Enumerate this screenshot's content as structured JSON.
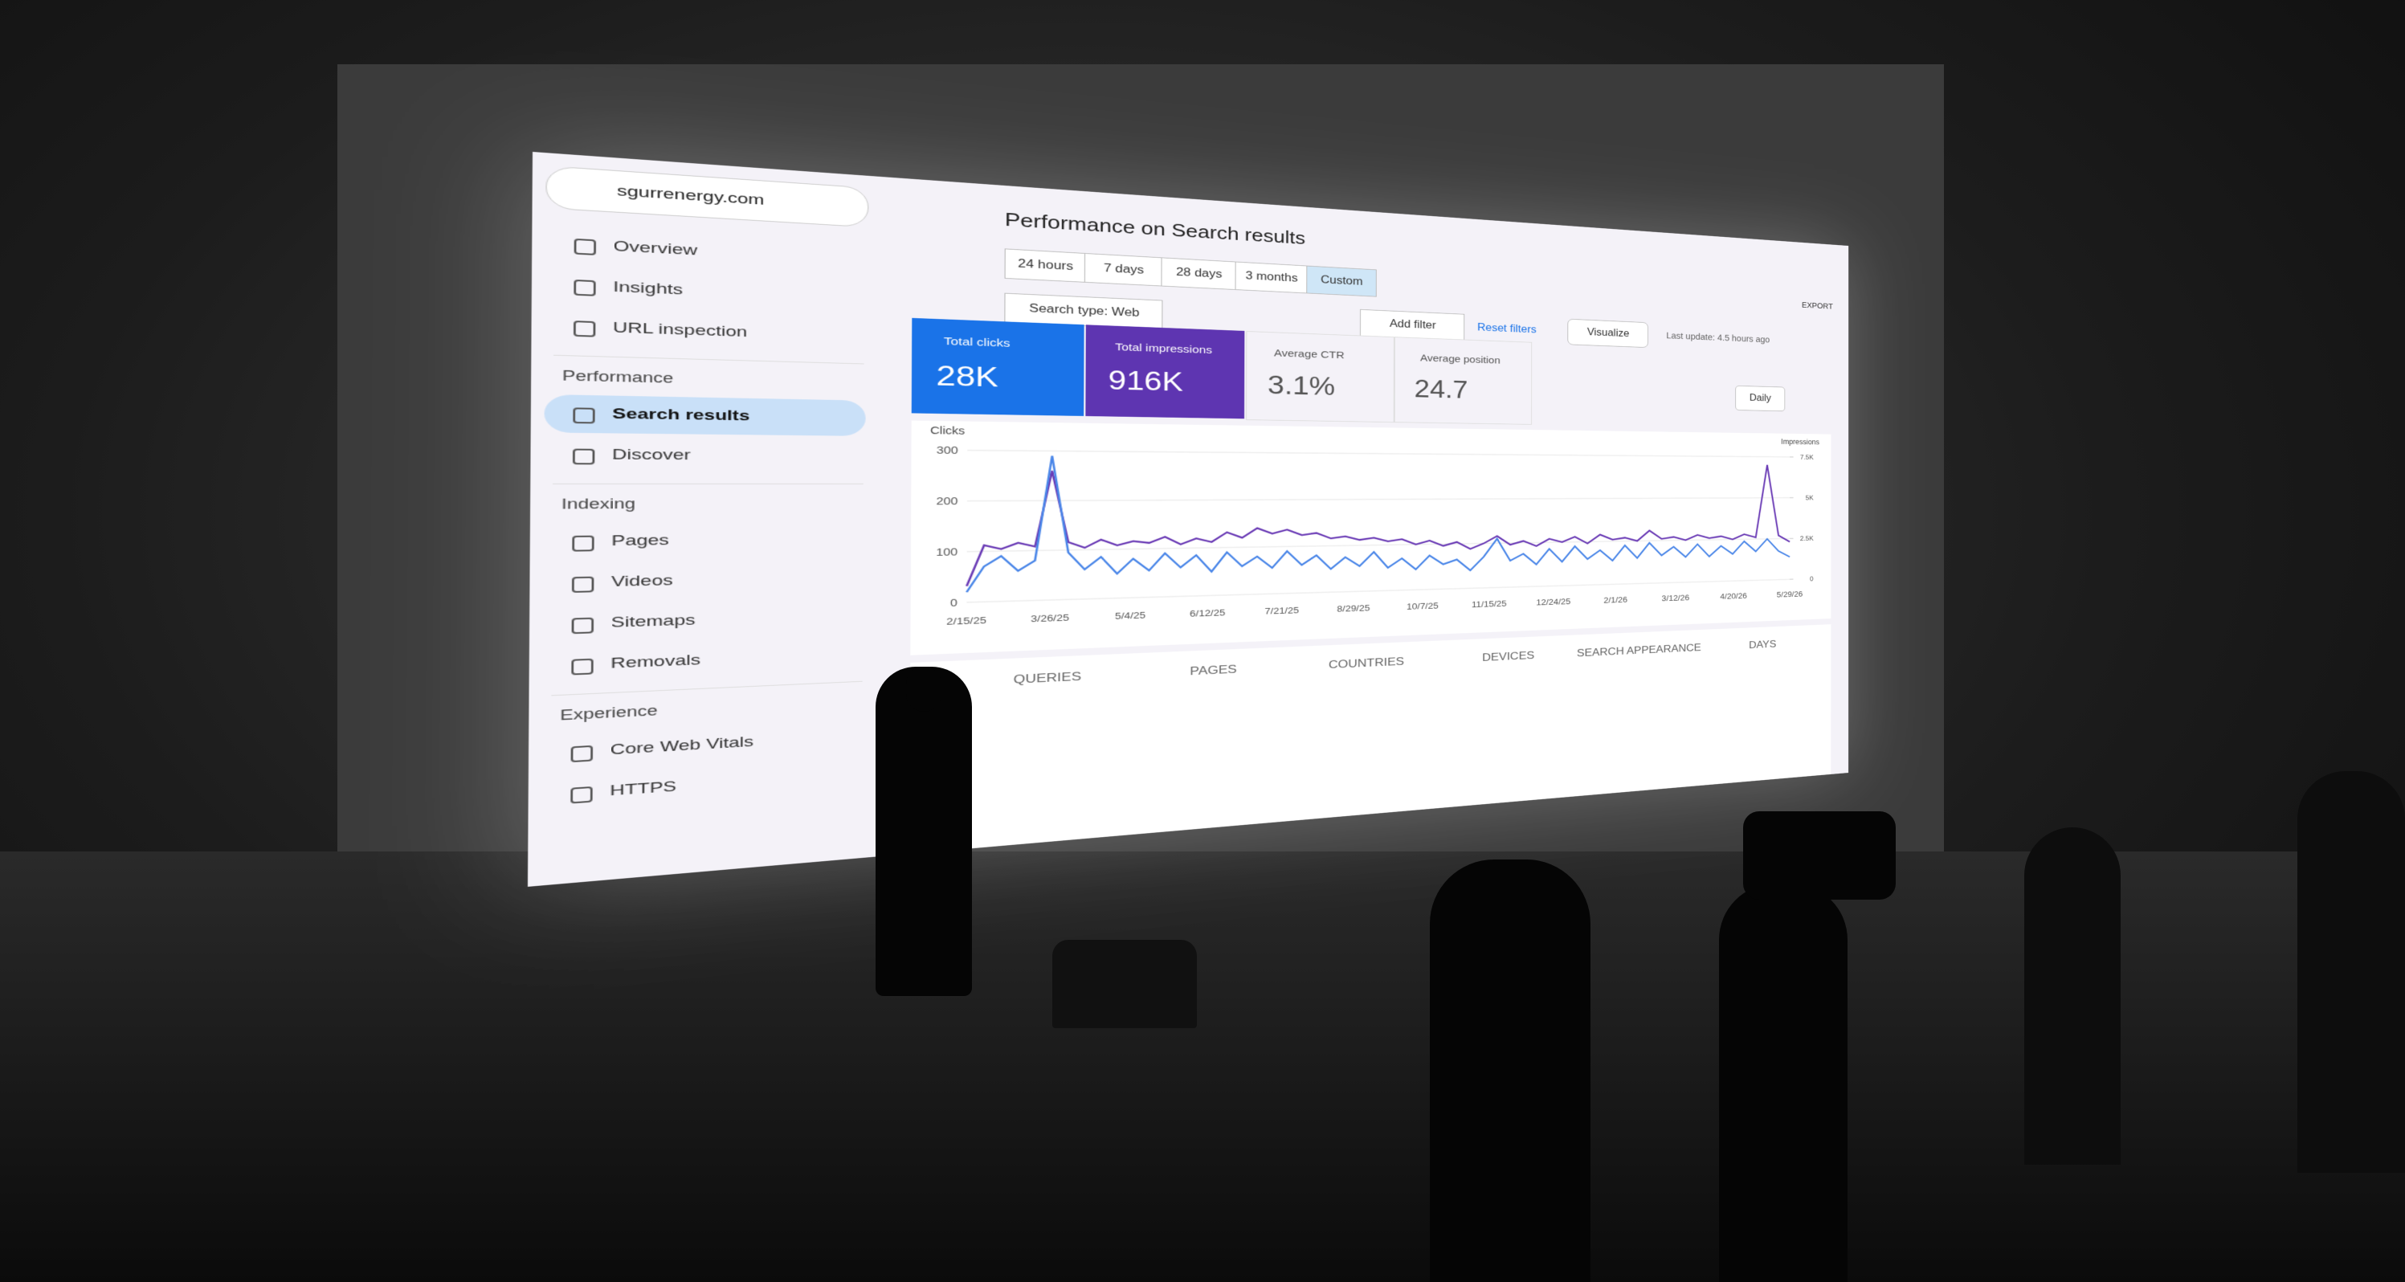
{
  "property": "sgurrenergy.com",
  "nav": {
    "top": [
      "Overview",
      "Insights",
      "URL inspection"
    ],
    "sections": [
      {
        "title": "Performance",
        "items": [
          "Search results",
          "Discover"
        ]
      },
      {
        "title": "Indexing",
        "items": [
          "Pages",
          "Videos",
          "Sitemaps",
          "Removals"
        ]
      },
      {
        "title": "Experience",
        "items": [
          "Core Web Vitals",
          "HTTPS"
        ]
      }
    ]
  },
  "page_title": "Performance on Search results",
  "export": "EXPORT",
  "date_ranges": [
    "24 hours",
    "7 days",
    "28 days",
    "3 months",
    "Custom"
  ],
  "filters": {
    "search_type": "Search type: Web",
    "add": "Add filter",
    "reset": "Reset filters",
    "visualize": "Visualize",
    "last_update": "Last update: 4.5 hours ago"
  },
  "metrics": [
    {
      "label": "Total clicks",
      "value": "28K"
    },
    {
      "label": "Total impressions",
      "value": "916K"
    },
    {
      "label": "Average CTR",
      "value": "3.1%"
    },
    {
      "label": "Average position",
      "value": "24.7"
    }
  ],
  "granularity": "Daily",
  "tabs": [
    "QUERIES",
    "PAGES",
    "COUNTRIES",
    "DEVICES",
    "SEARCH APPEARANCE",
    "DAYS"
  ],
  "chart_data": {
    "type": "line",
    "y_label": "Clicks",
    "y2_label": "Impressions",
    "x_tick_labels": [
      "2/15/25",
      "3/26/25",
      "5/4/25",
      "6/12/25",
      "7/21/25",
      "8/29/25",
      "10/7/25",
      "11/15/25",
      "12/24/25",
      "2/1/26",
      "3/12/26",
      "4/20/26",
      "5/29/26"
    ],
    "ylim": [
      0,
      300
    ],
    "yticks": [
      0,
      100,
      200,
      300
    ],
    "y2lim": [
      0,
      7500
    ],
    "y2ticks": [
      0,
      {
        "value": 2500,
        "label": "2.5K"
      },
      {
        "value": 5000,
        "label": "5K"
      },
      {
        "value": 7500,
        "label": "7.5K"
      }
    ],
    "grid": true,
    "series": [
      {
        "name": "Total clicks",
        "color": "#4a86e8",
        "values": [
          20,
          70,
          90,
          60,
          80,
          290,
          95,
          60,
          85,
          50,
          80,
          55,
          90,
          60,
          85,
          50,
          90,
          60,
          80,
          55,
          90,
          60,
          80,
          50,
          75,
          55,
          85,
          50,
          70,
          45,
          75,
          55,
          65,
          40,
          70,
          110,
          60,
          75,
          50,
          85,
          55,
          90,
          60,
          80,
          55,
          90,
          60,
          95,
          65,
          85,
          60,
          90,
          60,
          85,
          65,
          95,
          70,
          100,
          70,
          55
        ]
      },
      {
        "name": "Total impressions",
        "color": "#6a3bb5",
        "axis": "y2",
        "values": [
          800,
          2800,
          2600,
          2900,
          2700,
          6500,
          2900,
          2600,
          3000,
          2700,
          2900,
          2800,
          3100,
          2700,
          3000,
          2800,
          3300,
          3000,
          3500,
          3200,
          3400,
          3100,
          3200,
          2900,
          3000,
          2800,
          2900,
          2700,
          2800,
          2500,
          2700,
          2400,
          2600,
          2200,
          2500,
          2900,
          2400,
          2600,
          2300,
          2700,
          2500,
          2800,
          2400,
          2900,
          2600,
          2700,
          2500,
          3100,
          2600,
          2700,
          2500,
          2800,
          2600,
          2700,
          2500,
          2800,
          2600,
          7000,
          2700,
          2300
        ]
      }
    ]
  }
}
